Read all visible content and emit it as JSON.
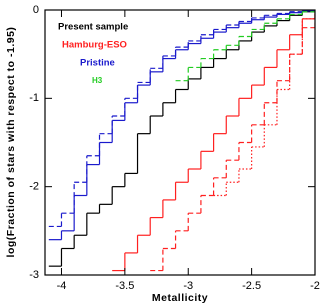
{
  "chart_data": {
    "type": "step",
    "x_label": "Metallicity",
    "y_label": "log(Fraction of stars with respect to -1.95)",
    "xlim": [
      -4.13,
      -2
    ],
    "ylim": [
      -3,
      0
    ],
    "xticks": [
      -4,
      -3.5,
      -3,
      -2.5,
      -2
    ],
    "yticks": [
      -3,
      -2,
      -1,
      0
    ],
    "series": [
      {
        "name": "Present sample",
        "color": "#000000",
        "lines": [
          {
            "dash": "solid",
            "x": [
              -4.1,
              -4.0,
              -3.9,
              -3.8,
              -3.7,
              -3.6,
              -3.5,
              -3.4,
              -3.3,
              -3.2,
              -3.1,
              -3.0,
              -2.9,
              -2.8,
              -2.7,
              -2.6,
              -2.5,
              -2.4,
              -2.3,
              -2.2,
              -2.1,
              -2.0
            ],
            "values": [
              -2.9,
              -2.7,
              -2.55,
              -2.3,
              -2.2,
              -2.0,
              -1.85,
              -1.4,
              -1.2,
              -1.05,
              -0.9,
              -0.78,
              -0.65,
              -0.55,
              -0.45,
              -0.35,
              -0.25,
              -0.18,
              -0.12,
              -0.06,
              -0.02,
              0
            ]
          }
        ]
      },
      {
        "name": "Hamburg-ESO",
        "color": "#ff2020",
        "lines": [
          {
            "dash": "solid",
            "x": [
              -3.6,
              -3.5,
              -3.4,
              -3.3,
              -3.2,
              -3.1,
              -3.0,
              -2.9,
              -2.8,
              -2.7,
              -2.6,
              -2.5,
              -2.4,
              -2.3,
              -2.2,
              -2.1,
              -2.0
            ],
            "values": [
              -2.95,
              -2.75,
              -2.55,
              -2.35,
              -2.15,
              -1.95,
              -1.8,
              -1.6,
              -1.4,
              -1.2,
              -1.0,
              -0.85,
              -0.65,
              -0.45,
              -0.28,
              -0.1,
              0
            ]
          },
          {
            "dash": "dashed",
            "x": [
              -3.3,
              -3.2,
              -3.1,
              -3.0,
              -2.9,
              -2.8,
              -2.7,
              -2.6,
              -2.5,
              -2.4,
              -2.3,
              -2.2,
              -2.1,
              -2.0
            ],
            "values": [
              -2.95,
              -2.7,
              -2.5,
              -2.3,
              -2.1,
              -1.9,
              -1.7,
              -1.5,
              -1.3,
              -1.05,
              -0.8,
              -0.5,
              -0.2,
              0
            ]
          },
          {
            "dash": "dotted",
            "x": [
              -2.8,
              -2.7,
              -2.6,
              -2.5,
              -2.4,
              -2.3,
              -2.2,
              -2.1,
              -2.0
            ],
            "values": [
              -2.1,
              -1.95,
              -1.8,
              -1.55,
              -1.3,
              -0.9,
              -0.5,
              -0.1,
              0
            ]
          }
        ]
      },
      {
        "name": "Pristine",
        "color": "#1a1acc",
        "lines": [
          {
            "dash": "solid",
            "x": [
              -4.1,
              -4.0,
              -3.9,
              -3.8,
              -3.7,
              -3.6,
              -3.5,
              -3.4,
              -3.3,
              -3.2,
              -3.1,
              -3.0,
              -2.9,
              -2.8,
              -2.7,
              -2.6,
              -2.5,
              -2.4,
              -2.3,
              -2.2,
              -2.1,
              -2.0
            ],
            "values": [
              -2.6,
              -2.5,
              -2.1,
              -1.75,
              -1.5,
              -1.25,
              -1.05,
              -0.85,
              -0.7,
              -0.55,
              -0.45,
              -0.38,
              -0.32,
              -0.25,
              -0.2,
              -0.15,
              -0.11,
              -0.08,
              -0.05,
              -0.03,
              -0.01,
              0
            ]
          },
          {
            "dash": "dashed",
            "x": [
              -4.1,
              -4.0,
              -3.9,
              -3.8,
              -3.7,
              -3.6,
              -3.5,
              -3.4,
              -3.3,
              -3.2,
              -3.1,
              -3.0,
              -2.9,
              -2.8,
              -2.7,
              -2.6,
              -2.5,
              -2.4,
              -2.3,
              -2.2,
              -2.1,
              -2.0
            ],
            "values": [
              -2.45,
              -2.3,
              -1.95,
              -1.65,
              -1.4,
              -1.2,
              -1.0,
              -0.82,
              -0.66,
              -0.52,
              -0.42,
              -0.35,
              -0.28,
              -0.22,
              -0.17,
              -0.13,
              -0.09,
              -0.06,
              -0.04,
              -0.02,
              -0.01,
              0
            ]
          }
        ]
      },
      {
        "name": "H3",
        "color": "#22cc22",
        "lines": [
          {
            "dash": "dashed",
            "x": [
              -3.1,
              -3.0,
              -2.9,
              -2.8,
              -2.7,
              -2.6,
              -2.5,
              -2.4,
              -2.3,
              -2.2,
              -2.1,
              -2.0
            ],
            "values": [
              -0.8,
              -0.65,
              -0.55,
              -0.45,
              -0.4,
              -0.3,
              -0.22,
              -0.15,
              -0.1,
              -0.05,
              -0.02,
              0
            ]
          }
        ]
      }
    ]
  }
}
